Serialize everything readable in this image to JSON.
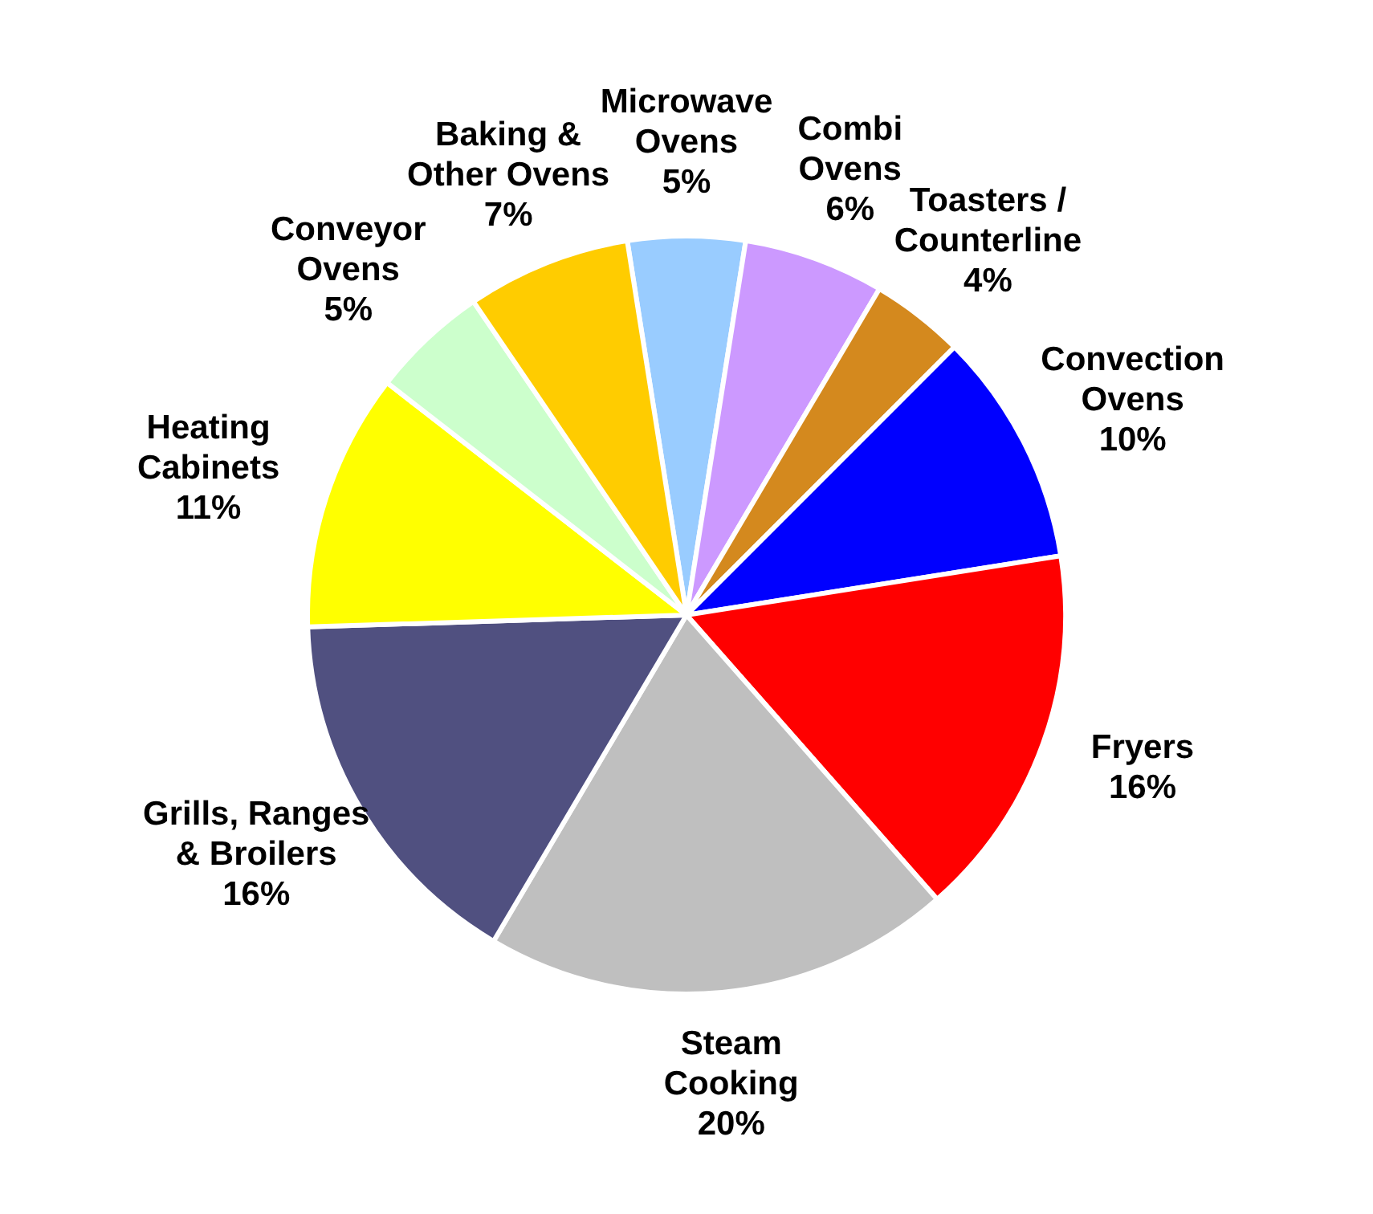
{
  "chart_data": {
    "type": "pie",
    "categories": [
      "Microwave\nOvens",
      "Combi\nOvens",
      "Toasters /\nCounterline",
      "Convection\nOvens",
      "Fryers",
      "Steam\nCooking",
      "Grills, Ranges\n& Broilers",
      "Heating\nCabinets",
      "Conveyor\nOvens",
      "Baking &\nOther Ovens"
    ],
    "values": [
      5,
      6,
      4,
      10,
      16,
      20,
      16,
      11,
      5,
      7
    ],
    "value_labels": [
      "5%",
      "6%",
      "4%",
      "10%",
      "16%",
      "20%",
      "16%",
      "11%",
      "5%",
      "7%"
    ],
    "colors": [
      "#99ccff",
      "#cc99ff",
      "#d4891e",
      "#0000ff",
      "#ff0000",
      "#bfbfbf",
      "#505080",
      "#ffff00",
      "#ccffcc",
      "#ffcc00"
    ],
    "legend": false
  }
}
